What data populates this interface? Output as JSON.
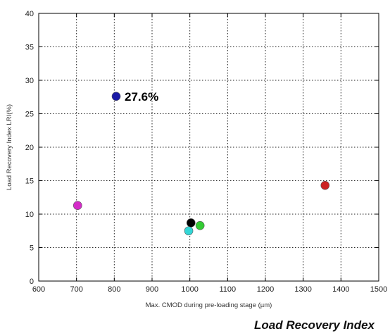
{
  "chart_data": {
    "type": "scatter",
    "title": "",
    "xlabel": "Max. CMOD during pre-loading stage (µm)",
    "ylabel": "Load Recovery Index LRI(%)",
    "xlim": [
      600,
      1500
    ],
    "ylim": [
      0,
      40
    ],
    "xticks": [
      "600",
      "700",
      "800",
      "900",
      "1000",
      "1100",
      "1200",
      "1300",
      "1400",
      "1500"
    ],
    "yticks": [
      "0",
      "5",
      "10",
      "15",
      "20",
      "25",
      "30",
      "35",
      "40"
    ],
    "grid": true,
    "grid_style": "dotted",
    "points": [
      {
        "x": 805,
        "y": 27.6,
        "color": "#1a1aa6"
      },
      {
        "x": 703,
        "y": 11.3,
        "color": "#d42bc8"
      },
      {
        "x": 1003,
        "y": 8.7,
        "color": "#000000"
      },
      {
        "x": 1027,
        "y": 8.3,
        "color": "#33cc33"
      },
      {
        "x": 997,
        "y": 7.5,
        "color": "#33d6d6"
      },
      {
        "x": 1358,
        "y": 14.3,
        "color": "#cc2222"
      }
    ],
    "annotations": [
      {
        "text": "27.6%",
        "x": 805,
        "y": 27.6
      }
    ]
  },
  "caption": "Load Recovery Index"
}
